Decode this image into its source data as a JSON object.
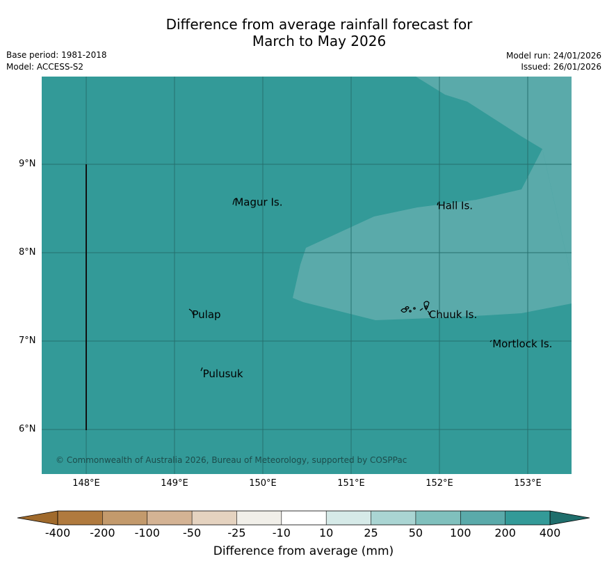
{
  "title": {
    "line1": "Difference from average rainfall forecast for",
    "line2": "March to May 2026"
  },
  "meta": {
    "base_period": "Base period: 1981-2018",
    "model": "Model: ACCESS-S2",
    "model_run": "Model run: 24/01/2026",
    "issued": "Issued: 26/01/2026"
  },
  "map": {
    "latitudes": [
      {
        "label": "9°N",
        "value": 9
      },
      {
        "label": "8°N",
        "value": 8
      },
      {
        "label": "7°N",
        "value": 7
      },
      {
        "label": "6°N",
        "value": 6
      }
    ],
    "longitudes": [
      {
        "label": "148°E",
        "value": 148
      },
      {
        "label": "149°E",
        "value": 149
      },
      {
        "label": "150°E",
        "value": 150
      },
      {
        "label": "151°E",
        "value": 151
      },
      {
        "label": "152°E",
        "value": 152
      },
      {
        "label": "153°E",
        "value": 153
      }
    ],
    "places": [
      {
        "name": "Magur Is.",
        "lon": 149.68,
        "lat": 8.57
      },
      {
        "name": "Hall Is.",
        "lon": 151.98,
        "lat": 8.53
      },
      {
        "name": "Pulap",
        "lon": 149.2,
        "lat": 7.3
      },
      {
        "name": "Chuuk Is.",
        "lon": 151.88,
        "lat": 7.3
      },
      {
        "name": "Mortlock Is.",
        "lon": 152.6,
        "lat": 6.97
      },
      {
        "name": "Pulusuk",
        "lon": 149.32,
        "lat": 6.63
      }
    ],
    "copyright": "© Commonwealth of Australia 2026, Bureau of Meteorology, supported by COSPPac",
    "base_color": "#339a98",
    "highlight_color": "#5aaaaa"
  },
  "colorbar": {
    "title": "Difference from average (mm)",
    "ticks": [
      "-400",
      "-200",
      "-100",
      "-50",
      "-25",
      "-10",
      "10",
      "25",
      "50",
      "100",
      "200",
      "400"
    ],
    "colors": [
      "#b07a3e",
      "#c39a6c",
      "#d4b394",
      "#e5d3c0",
      "#f1efe9",
      "#ffffff",
      "#d6eae8",
      "#aad5d3",
      "#80c0bd",
      "#5aaaaa",
      "#339a98"
    ],
    "extend_low_color": "#a06a2c",
    "extend_high_color": "#1f6e6c"
  }
}
